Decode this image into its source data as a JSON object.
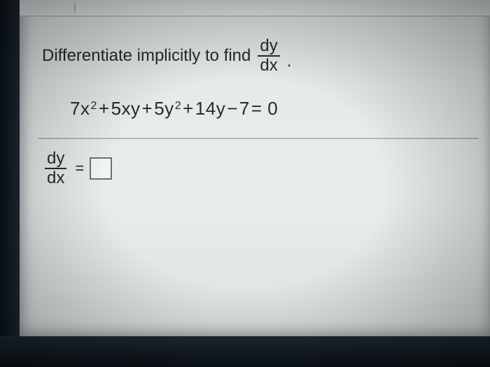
{
  "colors": {
    "panel_bg": "#e6eaea",
    "text": "#262a2a",
    "rule": "#b0b8b8",
    "box_border": "#6a7272",
    "bezel": "#1c2a33"
  },
  "font": {
    "family": "Arial",
    "size_prompt": 24,
    "size_equation": 26
  },
  "prompt": {
    "lead_text": "Differentiate implicitly to find",
    "fraction": {
      "num": "dy",
      "den": "dx"
    },
    "trailing_period": "."
  },
  "equation": {
    "display": "7x^2 + 5xy + 5y^2 + 14y − 7 = 0",
    "t1_coef": "7x",
    "t1_exp": "2",
    "plus1": " + ",
    "t2": "5xy",
    "plus2": " + ",
    "t3_coef": "5y",
    "t3_exp": "2",
    "plus3": " + ",
    "t4": "14y",
    "minus": " − ",
    "t5": "7",
    "eq0": " = 0"
  },
  "answer": {
    "lhs_fraction": {
      "num": "dy",
      "den": "dx"
    },
    "equals": "=",
    "box_value": ""
  }
}
